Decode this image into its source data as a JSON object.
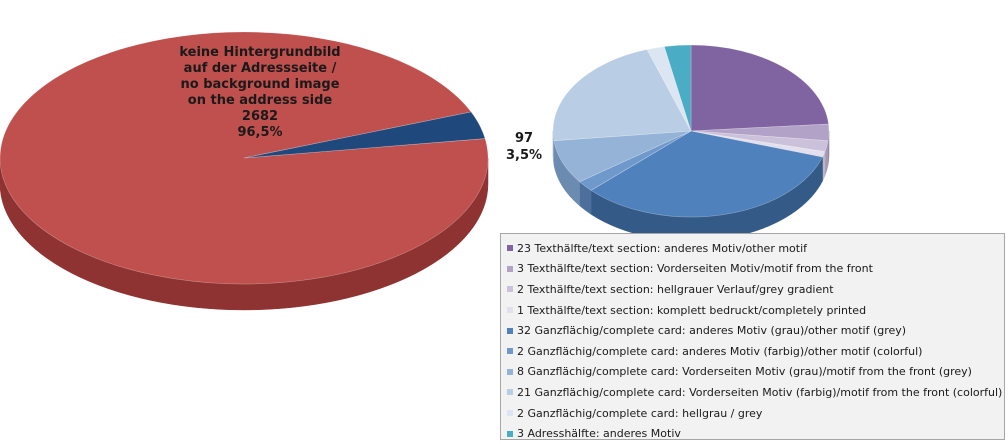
{
  "chart_data": [
    {
      "type": "pie",
      "slices": [
        {
          "value": 2682,
          "color": "#c0504d",
          "side": "#8e3331"
        },
        {
          "value": 97,
          "color": "#1f497d",
          "side": "#142f52"
        }
      ],
      "labels": {
        "main": [
          "keine Hintergrundbild",
          "auf der Adressseite /",
          "no background  image",
          "on the address side",
          "2682",
          "96,5%"
        ],
        "secondary": [
          "97",
          "3,5%"
        ]
      }
    },
    {
      "type": "pie",
      "slices": [
        {
          "value": 23,
          "label": "23 Texthälfte/text section: anderes Motiv/other motif",
          "color": "#8064a2",
          "side": "#5c4776"
        },
        {
          "value": 3,
          "label": "3 Texthälfte/text section: Vorderseiten Motiv/motif from the front",
          "color": "#b3a2c7",
          "side": "#8a7aa0"
        },
        {
          "value": 2,
          "label": "2 Texthälfte/text section: hellgrauer Verlauf/grey gradient",
          "color": "#ccc1da",
          "side": "#a598b5"
        },
        {
          "value": 1,
          "label": "1 Texthälfte/text section: komplett bedruckt/completely printed",
          "color": "#e4dfec",
          "side": "#bdb6c8"
        },
        {
          "value": 32,
          "label": "32 Ganzflächig/complete card: anderes Motiv (grau)/other motif (grey)",
          "color": "#4f81bd",
          "side": "#345a87"
        },
        {
          "value": 2,
          "label": "2 Ganzflächig/complete card: anderes Motiv (farbig)/other motif (colorful)",
          "color": "#6f98cb",
          "side": "#4c6f9c"
        },
        {
          "value": 8,
          "label": "8 Ganzflächig/complete card: Vorderseiten Motiv (grau)/motif from the front (grey)",
          "color": "#95b3d7",
          "side": "#6b8bb0"
        },
        {
          "value": 21,
          "label": "21 Ganzflächig/complete card: Vorderseiten Motiv (farbig)/motif from the front (colorful)",
          "color": "#b9cde5",
          "side": "#8ea6c2"
        },
        {
          "value": 2,
          "label": "2 Ganzflächig/complete card: hellgrau / grey",
          "color": "#dce6f2",
          "side": "#b3bfcc"
        },
        {
          "value": 3,
          "label": "3 Adresshälfte: anderes Motiv",
          "color": "#4bacc6",
          "side": "#337a8d"
        }
      ]
    }
  ]
}
